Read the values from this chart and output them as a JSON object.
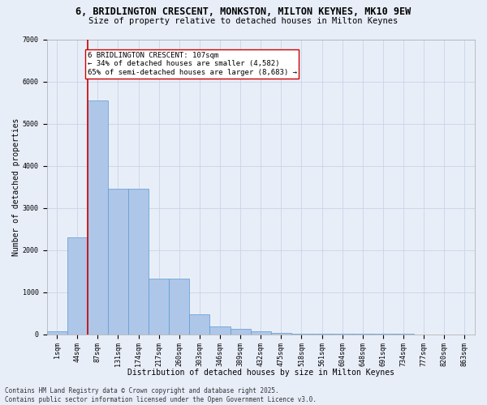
{
  "title_line1": "6, BRIDLINGTON CRESCENT, MONKSTON, MILTON KEYNES, MK10 9EW",
  "title_line2": "Size of property relative to detached houses in Milton Keynes",
  "xlabel": "Distribution of detached houses by size in Milton Keynes",
  "ylabel": "Number of detached properties",
  "bin_labels": [
    "1sqm",
    "44sqm",
    "87sqm",
    "131sqm",
    "174sqm",
    "217sqm",
    "260sqm",
    "303sqm",
    "346sqm",
    "389sqm",
    "432sqm",
    "475sqm",
    "518sqm",
    "561sqm",
    "604sqm",
    "648sqm",
    "691sqm",
    "734sqm",
    "777sqm",
    "820sqm",
    "863sqm"
  ],
  "bar_values": [
    75,
    2300,
    5550,
    3450,
    3450,
    1320,
    1320,
    480,
    175,
    125,
    75,
    30,
    10,
    5,
    3,
    2,
    1,
    1,
    0,
    0,
    0
  ],
  "bar_color": "#aec6e8",
  "bar_edge_color": "#5b9bd5",
  "grid_color": "#c8d4e8",
  "background_color": "#e8eef8",
  "vline_color": "#cc0000",
  "annotation_text": "6 BRIDLINGTON CRESCENT: 107sqm\n← 34% of detached houses are smaller (4,582)\n65% of semi-detached houses are larger (8,683) →",
  "annotation_box_color": "#ffffff",
  "annotation_box_edge": "#cc0000",
  "ylim": [
    0,
    7000
  ],
  "yticks": [
    0,
    1000,
    2000,
    3000,
    4000,
    5000,
    6000,
    7000
  ],
  "footnote": "Contains HM Land Registry data © Crown copyright and database right 2025.\nContains public sector information licensed under the Open Government Licence v3.0.",
  "title_fontsize": 8.5,
  "subtitle_fontsize": 7.5,
  "axis_label_fontsize": 7,
  "tick_fontsize": 6,
  "annotation_fontsize": 6.5,
  "footnote_fontsize": 5.5
}
